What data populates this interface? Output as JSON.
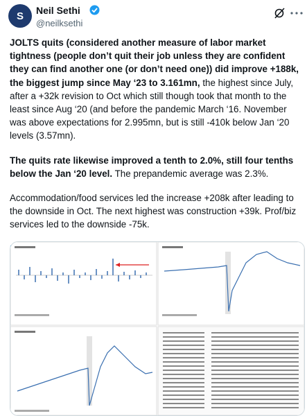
{
  "header": {
    "name": "Neil Sethi",
    "handle": "@neilksethi"
  },
  "body": {
    "paragraphs": [
      {
        "runs": [
          {
            "text": "JOLTS quits (considered another measure of labor market tightness (people don’t quit their job unless they are confident they can find another one (or don’t need one)) did improve +188k, the biggest jump since May ‘23 to 3.161mn,",
            "bold": true
          },
          {
            "text": " the highest since July, after a +32k revision to Oct which still though took that month to the least since Aug ‘20 (and before the pandemic March ‘16. November was above expectations for 2.995mn, but is still -410k below Jan ‘20 levels (3.57mn).",
            "bold": false
          }
        ]
      },
      {
        "runs": [
          {
            "text": "The quits rate likewise improved a tenth to 2.0%, still four tenths below the Jan ‘20 level.",
            "bold": true
          },
          {
            "text": " The prepandemic average was 2.3%.",
            "bold": false
          }
        ]
      },
      {
        "runs": [
          {
            "text": "Accommodation/food services led the increase +208k after leading to the downside in Oct. The next highest was construction +39k. Prof/biz services led to the downside -75k.",
            "bold": false
          }
        ]
      }
    ],
    "link": "bls.gov/news.release/p..."
  }
}
